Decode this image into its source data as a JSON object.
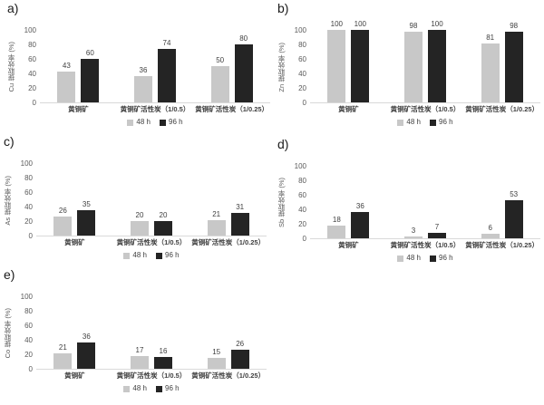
{
  "legend": {
    "items": [
      {
        "label": "48 h",
        "color": "#c8c8c8"
      },
      {
        "label": "96 h",
        "color": "#242424"
      }
    ]
  },
  "colors": {
    "bar_48h": "#c8c8c8",
    "bar_96h": "#242424",
    "axis_text": "#595959",
    "value_text": "#404040",
    "baseline": "#d9d9d9"
  },
  "chart_data": [
    {
      "id": "a",
      "panel_label": "a)",
      "type": "bar",
      "ylabel": "Cu 提取效率 (%)",
      "xlabel": "",
      "categories": [
        "黄铜矿",
        "黄铜矿活性炭（1/0.5）",
        "黄铜矿活性炭（1/0.25）"
      ],
      "series": [
        {
          "name": "48 h",
          "values": [
            43,
            36,
            50
          ]
        },
        {
          "name": "96 h",
          "values": [
            60,
            74,
            80
          ]
        }
      ],
      "ylim": [
        0,
        100
      ],
      "yticks": [
        0,
        20,
        40,
        60,
        80,
        100
      ],
      "grid": false,
      "legend_position": "bottom"
    },
    {
      "id": "b",
      "panel_label": "b)",
      "type": "bar",
      "ylabel": "Zn 提取效率 (%)",
      "xlabel": "",
      "categories": [
        "黄铜矿",
        "黄铜矿活性炭（1/0.5）",
        "黄铜矿活性炭（1/0.25）"
      ],
      "series": [
        {
          "name": "48 h",
          "values": [
            100,
            98,
            81
          ]
        },
        {
          "name": "96 h",
          "values": [
            100,
            100,
            98
          ]
        }
      ],
      "ylim": [
        0,
        100
      ],
      "yticks": [
        0,
        20,
        40,
        60,
        80,
        100
      ],
      "grid": false,
      "legend_position": "bottom"
    },
    {
      "id": "c",
      "panel_label": "c)",
      "type": "bar",
      "ylabel": "As 提取效率 (%)",
      "xlabel": "",
      "categories": [
        "黄铜矿",
        "黄铜矿活性炭（1/0.5）",
        "黄铜矿活性炭（1/0.25）"
      ],
      "series": [
        {
          "name": "48 h",
          "values": [
            26,
            20,
            21
          ]
        },
        {
          "name": "96 h",
          "values": [
            35,
            20,
            31
          ]
        }
      ],
      "ylim": [
        0,
        100
      ],
      "yticks": [
        0,
        20,
        40,
        60,
        80,
        100
      ],
      "grid": false,
      "legend_position": "bottom"
    },
    {
      "id": "d",
      "panel_label": "d)",
      "type": "bar",
      "ylabel": "Sb 提取效率 (%)",
      "xlabel": "",
      "categories": [
        "黄铜矿",
        "黄铜矿活性炭（1/0.5）",
        "黄铜矿活性炭（1/0.25）"
      ],
      "series": [
        {
          "name": "48 h",
          "values": [
            18,
            3,
            6
          ]
        },
        {
          "name": "96 h",
          "values": [
            36,
            7,
            53
          ]
        }
      ],
      "ylim": [
        0,
        100
      ],
      "yticks": [
        0,
        20,
        40,
        60,
        80,
        100
      ],
      "grid": false,
      "legend_position": "bottom"
    },
    {
      "id": "e",
      "panel_label": "e)",
      "type": "bar",
      "ylabel": "Co 提取效率 (%)",
      "xlabel": "",
      "categories": [
        "黄铜矿",
        "黄铜矿活性炭（1/0.5）",
        "黄铜矿活性炭（1/0.25）"
      ],
      "series": [
        {
          "name": "48 h",
          "values": [
            21,
            17,
            15
          ]
        },
        {
          "name": "96 h",
          "values": [
            36,
            16,
            26
          ]
        }
      ],
      "ylim": [
        0,
        100
      ],
      "yticks": [
        0,
        20,
        40,
        60,
        80,
        100
      ],
      "grid": false,
      "legend_position": "bottom"
    }
  ]
}
